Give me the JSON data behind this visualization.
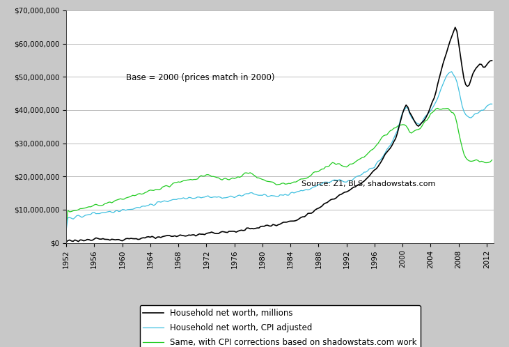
{
  "annotation_base": "Base = 2000 (prices match in 2000)",
  "annotation_source": "Source: Z1, BLS, shadowstats.com",
  "background_fig": "#c8c8c8",
  "background_plot": "#ffffff",
  "line1_color": "#000000",
  "line2_color": "#40c0e0",
  "line3_color": "#22cc22",
  "ylim": [
    0,
    70000000
  ],
  "xlim_start": 1952,
  "xlim_end": 2013,
  "xtick_years": [
    1952,
    1956,
    1960,
    1964,
    1968,
    1972,
    1976,
    1980,
    1984,
    1988,
    1992,
    1996,
    2000,
    2004,
    2008,
    2012
  ],
  "ytick_values": [
    0,
    10000000,
    20000000,
    30000000,
    40000000,
    50000000,
    60000000,
    70000000
  ],
  "ytick_labels": [
    "$0",
    "$10,000,000",
    "$20,000,000",
    "$30,000,000",
    "$40,000,000",
    "$50,000,000",
    "$60,000,000",
    "$70,000,000"
  ],
  "legend_labels": [
    "Household net worth, millions",
    "Household net worth, CPI adjusted",
    "Same, with CPI corrections based on shadowstats.com work"
  ]
}
